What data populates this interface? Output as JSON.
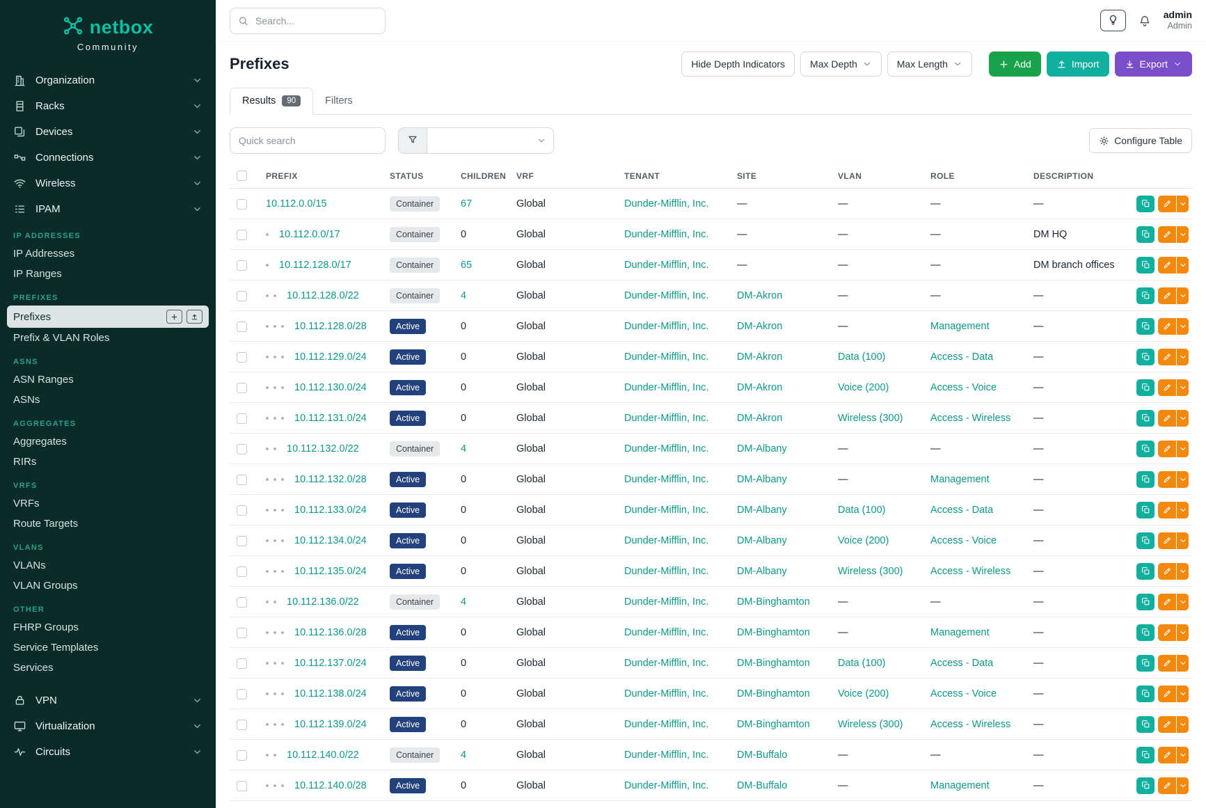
{
  "brand": {
    "name": "netbox",
    "community": "Community"
  },
  "topbar": {
    "search_placeholder": "Search...",
    "user_name": "admin",
    "user_role": "Admin"
  },
  "sidebar": {
    "top_items": [
      {
        "label": "Organization",
        "icon": "building-icon"
      },
      {
        "label": "Racks",
        "icon": "rack-icon"
      },
      {
        "label": "Devices",
        "icon": "devices-icon"
      },
      {
        "label": "Connections",
        "icon": "cable-icon"
      },
      {
        "label": "Wireless",
        "icon": "wifi-icon"
      },
      {
        "label": "IPAM",
        "icon": "ipam-icon"
      }
    ],
    "groups": [
      {
        "heading": "IP ADDRESSES",
        "items": [
          {
            "label": "IP Addresses"
          },
          {
            "label": "IP Ranges"
          }
        ]
      },
      {
        "heading": "PREFIXES",
        "items": [
          {
            "label": "Prefixes",
            "active": true,
            "buttons": true
          },
          {
            "label": "Prefix & VLAN Roles"
          }
        ]
      },
      {
        "heading": "ASNS",
        "items": [
          {
            "label": "ASN Ranges"
          },
          {
            "label": "ASNs"
          }
        ]
      },
      {
        "heading": "AGGREGATES",
        "items": [
          {
            "label": "Aggregates"
          },
          {
            "label": "RIRs"
          }
        ]
      },
      {
        "heading": "VRFS",
        "items": [
          {
            "label": "VRFs"
          },
          {
            "label": "Route Targets"
          }
        ]
      },
      {
        "heading": "VLANS",
        "items": [
          {
            "label": "VLANs"
          },
          {
            "label": "VLAN Groups"
          }
        ]
      },
      {
        "heading": "OTHER",
        "items": [
          {
            "label": "FHRP Groups"
          },
          {
            "label": "Service Templates"
          },
          {
            "label": "Services"
          }
        ]
      }
    ],
    "bottom_items": [
      {
        "label": "VPN",
        "icon": "vpn-icon"
      },
      {
        "label": "Virtualization",
        "icon": "monitor-icon"
      },
      {
        "label": "Circuits",
        "icon": "circuits-icon"
      }
    ]
  },
  "page": {
    "title": "Prefixes",
    "hide_depth_label": "Hide Depth Indicators",
    "max_depth_label": "Max Depth",
    "max_length_label": "Max Length",
    "add_label": "Add",
    "import_label": "Import",
    "export_label": "Export",
    "configure_table_label": "Configure Table",
    "quick_search_placeholder": "Quick search",
    "tabs": [
      {
        "label": "Results",
        "badge": "90",
        "active": true
      },
      {
        "label": "Filters",
        "active": false
      }
    ]
  },
  "table": {
    "headers": [
      "PREFIX",
      "STATUS",
      "CHILDREN",
      "VRF",
      "TENANT",
      "SITE",
      "VLAN",
      "ROLE",
      "DESCRIPTION"
    ],
    "rows": [
      {
        "depth": 0,
        "prefix": "10.112.0.0/15",
        "status": "Container",
        "children": "67",
        "children_link": true,
        "vrf": "Global",
        "tenant": "Dunder-Mifflin, Inc.",
        "site": "—",
        "vlan": "—",
        "role": "—",
        "description": "—"
      },
      {
        "depth": 1,
        "prefix": "10.112.0.0/17",
        "status": "Container",
        "children": "0",
        "children_link": false,
        "vrf": "Global",
        "tenant": "Dunder-Mifflin, Inc.",
        "site": "—",
        "vlan": "—",
        "role": "—",
        "description": "DM HQ"
      },
      {
        "depth": 1,
        "prefix": "10.112.128.0/17",
        "status": "Container",
        "children": "65",
        "children_link": true,
        "vrf": "Global",
        "tenant": "Dunder-Mifflin, Inc.",
        "site": "—",
        "vlan": "—",
        "role": "—",
        "description": "DM branch offices"
      },
      {
        "depth": 2,
        "prefix": "10.112.128.0/22",
        "status": "Container",
        "children": "4",
        "children_link": true,
        "vrf": "Global",
        "tenant": "Dunder-Mifflin, Inc.",
        "site": "DM-Akron",
        "vlan": "—",
        "role": "—",
        "description": "—"
      },
      {
        "depth": 3,
        "prefix": "10.112.128.0/28",
        "status": "Active",
        "children": "0",
        "children_link": false,
        "vrf": "Global",
        "tenant": "Dunder-Mifflin, Inc.",
        "site": "DM-Akron",
        "vlan": "—",
        "role": "Management",
        "description": "—"
      },
      {
        "depth": 3,
        "prefix": "10.112.129.0/24",
        "status": "Active",
        "children": "0",
        "children_link": false,
        "vrf": "Global",
        "tenant": "Dunder-Mifflin, Inc.",
        "site": "DM-Akron",
        "vlan": "Data (100)",
        "role": "Access - Data",
        "description": "—"
      },
      {
        "depth": 3,
        "prefix": "10.112.130.0/24",
        "status": "Active",
        "children": "0",
        "children_link": false,
        "vrf": "Global",
        "tenant": "Dunder-Mifflin, Inc.",
        "site": "DM-Akron",
        "vlan": "Voice (200)",
        "role": "Access - Voice",
        "description": "—"
      },
      {
        "depth": 3,
        "prefix": "10.112.131.0/24",
        "status": "Active",
        "children": "0",
        "children_link": false,
        "vrf": "Global",
        "tenant": "Dunder-Mifflin, Inc.",
        "site": "DM-Akron",
        "vlan": "Wireless (300)",
        "role": "Access - Wireless",
        "description": "—"
      },
      {
        "depth": 2,
        "prefix": "10.112.132.0/22",
        "status": "Container",
        "children": "4",
        "children_link": true,
        "vrf": "Global",
        "tenant": "Dunder-Mifflin, Inc.",
        "site": "DM-Albany",
        "vlan": "—",
        "role": "—",
        "description": "—"
      },
      {
        "depth": 3,
        "prefix": "10.112.132.0/28",
        "status": "Active",
        "children": "0",
        "children_link": false,
        "vrf": "Global",
        "tenant": "Dunder-Mifflin, Inc.",
        "site": "DM-Albany",
        "vlan": "—",
        "role": "Management",
        "description": "—"
      },
      {
        "depth": 3,
        "prefix": "10.112.133.0/24",
        "status": "Active",
        "children": "0",
        "children_link": false,
        "vrf": "Global",
        "tenant": "Dunder-Mifflin, Inc.",
        "site": "DM-Albany",
        "vlan": "Data (100)",
        "role": "Access - Data",
        "description": "—"
      },
      {
        "depth": 3,
        "prefix": "10.112.134.0/24",
        "status": "Active",
        "children": "0",
        "children_link": false,
        "vrf": "Global",
        "tenant": "Dunder-Mifflin, Inc.",
        "site": "DM-Albany",
        "vlan": "Voice (200)",
        "role": "Access - Voice",
        "description": "—"
      },
      {
        "depth": 3,
        "prefix": "10.112.135.0/24",
        "status": "Active",
        "children": "0",
        "children_link": false,
        "vrf": "Global",
        "tenant": "Dunder-Mifflin, Inc.",
        "site": "DM-Albany",
        "vlan": "Wireless (300)",
        "role": "Access - Wireless",
        "description": "—"
      },
      {
        "depth": 2,
        "prefix": "10.112.136.0/22",
        "status": "Container",
        "children": "4",
        "children_link": true,
        "vrf": "Global",
        "tenant": "Dunder-Mifflin, Inc.",
        "site": "DM-Binghamton",
        "vlan": "—",
        "role": "—",
        "description": "—"
      },
      {
        "depth": 3,
        "prefix": "10.112.136.0/28",
        "status": "Active",
        "children": "0",
        "children_link": false,
        "vrf": "Global",
        "tenant": "Dunder-Mifflin, Inc.",
        "site": "DM-Binghamton",
        "vlan": "—",
        "role": "Management",
        "description": "—"
      },
      {
        "depth": 3,
        "prefix": "10.112.137.0/24",
        "status": "Active",
        "children": "0",
        "children_link": false,
        "vrf": "Global",
        "tenant": "Dunder-Mifflin, Inc.",
        "site": "DM-Binghamton",
        "vlan": "Data (100)",
        "role": "Access - Data",
        "description": "—"
      },
      {
        "depth": 3,
        "prefix": "10.112.138.0/24",
        "status": "Active",
        "children": "0",
        "children_link": false,
        "vrf": "Global",
        "tenant": "Dunder-Mifflin, Inc.",
        "site": "DM-Binghamton",
        "vlan": "Voice (200)",
        "role": "Access - Voice",
        "description": "—"
      },
      {
        "depth": 3,
        "prefix": "10.112.139.0/24",
        "status": "Active",
        "children": "0",
        "children_link": false,
        "vrf": "Global",
        "tenant": "Dunder-Mifflin, Inc.",
        "site": "DM-Binghamton",
        "vlan": "Wireless (300)",
        "role": "Access - Wireless",
        "description": "—"
      },
      {
        "depth": 2,
        "prefix": "10.112.140.0/22",
        "status": "Container",
        "children": "4",
        "children_link": true,
        "vrf": "Global",
        "tenant": "Dunder-Mifflin, Inc.",
        "site": "DM-Buffalo",
        "vlan": "—",
        "role": "—",
        "description": "—"
      },
      {
        "depth": 3,
        "prefix": "10.112.140.0/28",
        "status": "Active",
        "children": "0",
        "children_link": false,
        "vrf": "Global",
        "tenant": "Dunder-Mifflin, Inc.",
        "site": "DM-Buffalo",
        "vlan": "—",
        "role": "Management",
        "description": "—"
      }
    ]
  },
  "colors": {
    "sidebar_bg": "#0a2b27",
    "brand_teal": "#0cbfa6",
    "link_teal": "#0e9888",
    "active_badge_blue": "#23417d",
    "container_badge_bg": "#e6e9ec",
    "add_green": "#17a24b",
    "import_teal": "#10af9e",
    "export_purple": "#7a4ec9",
    "edit_orange": "#f2890d"
  }
}
